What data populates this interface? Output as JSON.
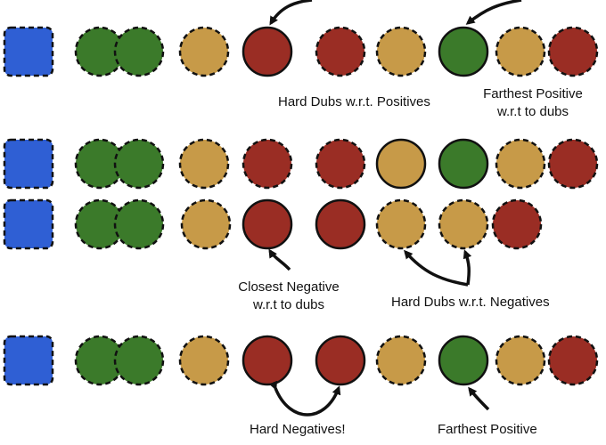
{
  "colors": {
    "anchor": "#2f5fd4",
    "positive": "#3b7a2a",
    "dub": "#c79a48",
    "negative": "#9a2d24",
    "stroke": "#111111"
  },
  "rows": [
    {
      "id": "row-1",
      "items": [
        {
          "kind": "anchor",
          "style": "dashed"
        },
        {
          "kind": "positive",
          "style": "dashed"
        },
        {
          "kind": "positive",
          "style": "dashed"
        },
        {
          "kind": "dub",
          "style": "dashed"
        },
        {
          "kind": "negative",
          "style": "solid"
        },
        {
          "kind": "negative",
          "style": "dashed"
        },
        {
          "kind": "dub",
          "style": "dashed"
        },
        {
          "kind": "positive",
          "style": "solid"
        },
        {
          "kind": "dub",
          "style": "dashed"
        },
        {
          "kind": "negative",
          "style": "dashed"
        }
      ]
    },
    {
      "id": "row-2",
      "items": [
        {
          "kind": "anchor",
          "style": "dashed"
        },
        {
          "kind": "positive",
          "style": "dashed"
        },
        {
          "kind": "positive",
          "style": "dashed"
        },
        {
          "kind": "dub",
          "style": "dashed"
        },
        {
          "kind": "negative",
          "style": "dashed"
        },
        {
          "kind": "negative",
          "style": "dashed"
        },
        {
          "kind": "dub",
          "style": "solid"
        },
        {
          "kind": "positive",
          "style": "solid"
        },
        {
          "kind": "dub",
          "style": "dashed"
        },
        {
          "kind": "negative",
          "style": "dashed"
        }
      ]
    },
    {
      "id": "row-3",
      "items": [
        {
          "kind": "anchor",
          "style": "dashed"
        },
        {
          "kind": "positive",
          "style": "dashed"
        },
        {
          "kind": "positive",
          "style": "dashed"
        },
        {
          "kind": "dub",
          "style": "dashed"
        },
        {
          "kind": "negative",
          "style": "solid"
        },
        {
          "kind": "negative",
          "style": "solid"
        },
        {
          "kind": "dub",
          "style": "dashed"
        },
        {
          "kind": "dub",
          "style": "dashed"
        },
        {
          "kind": "negative",
          "style": "dashed"
        }
      ]
    },
    {
      "id": "row-4",
      "items": [
        {
          "kind": "anchor",
          "style": "dashed"
        },
        {
          "kind": "positive",
          "style": "dashed"
        },
        {
          "kind": "positive",
          "style": "dashed"
        },
        {
          "kind": "dub",
          "style": "dashed"
        },
        {
          "kind": "negative",
          "style": "solid"
        },
        {
          "kind": "negative",
          "style": "solid"
        },
        {
          "kind": "dub",
          "style": "dashed"
        },
        {
          "kind": "positive",
          "style": "solid"
        },
        {
          "kind": "dub",
          "style": "dashed"
        },
        {
          "kind": "negative",
          "style": "dashed"
        }
      ]
    }
  ],
  "labels": {
    "hard_dubs_positives": "Hard Dubs w.r.t. Positives",
    "farthest_positive_dubs_1": "Farthest Positive",
    "farthest_positive_dubs_2": "w.r.t to dubs",
    "closest_negative_1": "Closest Negative",
    "closest_negative_2": "w.r.t to dubs",
    "hard_dubs_negatives": "Hard Dubs w.r.t. Negatives",
    "hard_negatives": "Hard Negatives!",
    "farthest_positive": "Farthest Positive"
  }
}
